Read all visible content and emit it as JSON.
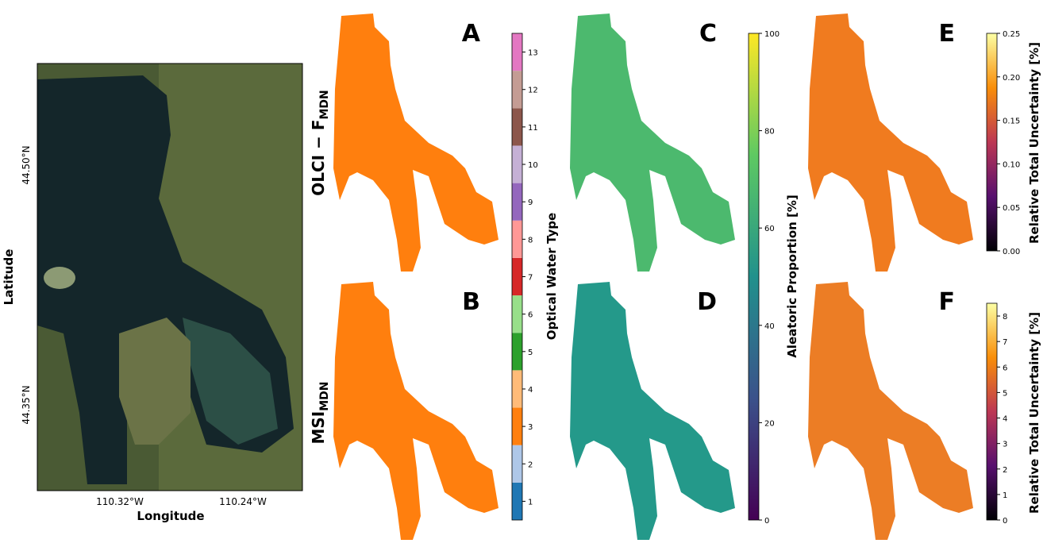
{
  "satellite": {
    "ylabel": "Latitude",
    "xlabel": "Longitude",
    "yticks": [
      "44.50°N",
      "44.35°N"
    ],
    "xticks": [
      "110.32°W",
      "110.24°W"
    ]
  },
  "row_labels": [
    {
      "text": "OLCI − F",
      "subscript": "MDN"
    },
    {
      "text": "MSI",
      "subscript": "MDN"
    }
  ],
  "panels": [
    {
      "letter": "A",
      "color": "#ff7f0e"
    },
    {
      "letter": "B",
      "color": "#ff7f0e"
    },
    {
      "letter": "C",
      "color": "#4cb96e"
    },
    {
      "letter": "D",
      "color": "#24998a"
    },
    {
      "letter": "E",
      "color": "#f07b1f"
    },
    {
      "letter": "F",
      "color": "#ec7d25"
    }
  ],
  "colorbars": [
    {
      "label": "Optical Water Type",
      "categories": [
        "1",
        "2",
        "3",
        "4",
        "5",
        "6",
        "7",
        "8",
        "9",
        "10",
        "11",
        "12",
        "13"
      ],
      "colors": [
        "#1f77b4",
        "#aec7e8",
        "#ff7f0e",
        "#ffbb78",
        "#2ca02c",
        "#98df8a",
        "#d62728",
        "#ff9896",
        "#9467bd",
        "#c5b0d5",
        "#8c564b",
        "#c49c94",
        "#e377c2"
      ]
    },
    {
      "label": "Aleatoric Proportion [%]",
      "lim": [
        0,
        100
      ],
      "ticks": [
        0,
        20,
        40,
        60,
        80,
        100
      ]
    },
    {
      "label": "Relative Total Uncertainty [%]",
      "lim": [
        0,
        0.25
      ],
      "ticks": [
        {
          "value": 0,
          "label": "0.00"
        },
        0.05,
        {
          "value": 0.1,
          "label": "0.10"
        },
        0.15,
        {
          "value": 0.2,
          "label": "0.20"
        },
        0.25
      ]
    },
    {
      "label": "Relative Total Uncertainty [%]",
      "lim": [
        0,
        8.5
      ],
      "ticks": [
        0,
        1,
        2,
        3,
        4,
        5,
        6,
        7,
        8
      ]
    }
  ]
}
